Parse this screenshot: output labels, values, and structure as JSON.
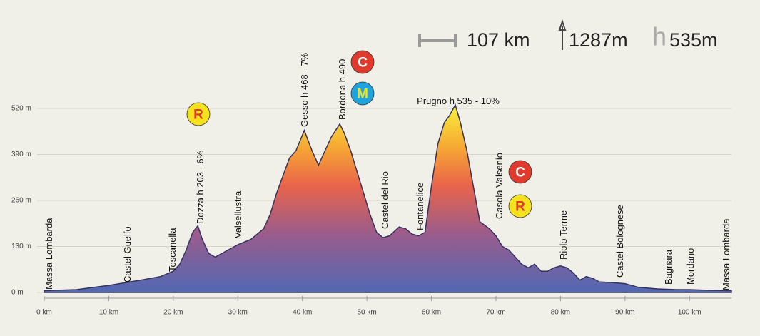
{
  "chart_data": {
    "type": "area",
    "header": {
      "distance": "107 km",
      "climb": "1287m",
      "height_symbol": "h",
      "max_height": "535m"
    },
    "x": [
      0,
      5,
      10,
      15,
      18,
      20,
      21,
      22,
      23,
      23.8,
      24.5,
      25.5,
      26.5,
      28,
      30,
      32,
      34,
      35,
      36,
      37,
      38,
      39,
      40.3,
      41.5,
      42.5,
      43.5,
      44.5,
      45.8,
      46.5,
      47.5,
      48.5,
      49.5,
      50.5,
      51.5,
      52.5,
      53.5,
      55,
      56,
      57,
      58,
      59,
      60,
      61,
      62,
      62.8,
      63.7,
      64.5,
      65.5,
      66.5,
      67.5,
      69,
      70,
      71,
      72,
      73,
      74,
      75,
      76,
      77,
      78,
      79,
      80,
      81,
      82,
      83,
      84,
      85,
      86,
      88,
      90,
      92,
      95,
      98,
      100,
      103,
      106.5
    ],
    "values": [
      5,
      8,
      20,
      35,
      45,
      60,
      80,
      120,
      170,
      188,
      150,
      110,
      100,
      115,
      135,
      150,
      180,
      220,
      280,
      330,
      380,
      400,
      458,
      400,
      360,
      400,
      440,
      476,
      450,
      400,
      340,
      280,
      220,
      170,
      155,
      160,
      185,
      180,
      165,
      160,
      170,
      300,
      420,
      480,
      500,
      530,
      480,
      400,
      300,
      200,
      180,
      160,
      130,
      120,
      100,
      80,
      70,
      80,
      60,
      60,
      70,
      75,
      70,
      55,
      35,
      45,
      40,
      30,
      28,
      25,
      15,
      10,
      8,
      8,
      6,
      5
    ],
    "xlim": [
      0,
      106.5
    ],
    "ylim": [
      0,
      520
    ],
    "xticks": [
      {
        "value": 0,
        "label": "0 km"
      },
      {
        "value": 10,
        "label": "10 km"
      },
      {
        "value": 20,
        "label": "20 km"
      },
      {
        "value": 30,
        "label": "30 km"
      },
      {
        "value": 40,
        "label": "40 km"
      },
      {
        "value": 50,
        "label": "50 km"
      },
      {
        "value": 60,
        "label": "60 km"
      },
      {
        "value": 70,
        "label": "70 km"
      },
      {
        "value": 80,
        "label": "80 km"
      },
      {
        "value": 90,
        "label": "90 km"
      },
      {
        "value": 100,
        "label": "100 km"
      }
    ],
    "yticks": [
      {
        "value": 0,
        "label": "0 m"
      },
      {
        "value": 130,
        "label": "130 m"
      },
      {
        "value": 260,
        "label": "260 m"
      },
      {
        "value": 390,
        "label": "390 m"
      },
      {
        "value": 520,
        "label": "520 m"
      }
    ],
    "grid": true,
    "places": [
      "Massa Lombarda",
      "Castel Guelfo",
      "Toscanella",
      "Dozza h 203 - 6%",
      "Valsellustra",
      "Gesso h 468 - 7%",
      "Bordona h 490",
      "Castel del Rio",
      "Fontanelice",
      "Prugno h 535 - 10%",
      "Casola Valsenio",
      "Riolo Terme",
      "Castel Bolognese",
      "Bagnara",
      "Mordano",
      "Massa Lombarda"
    ],
    "icons": [
      "R",
      "C",
      "M",
      "C",
      "R"
    ]
  }
}
